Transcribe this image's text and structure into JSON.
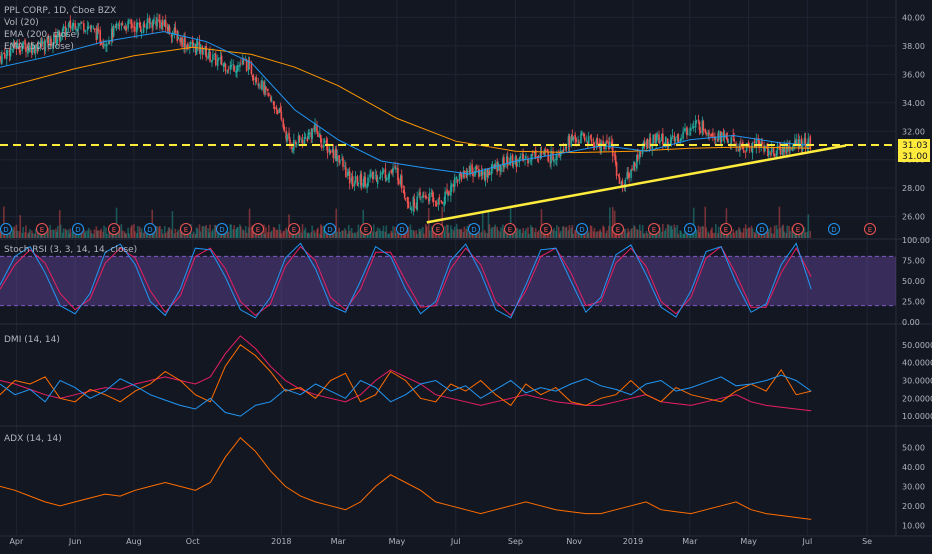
{
  "colors": {
    "background": "#131722",
    "grid": "#1f2433",
    "divider": "#2a2e39",
    "text": "#b2b5be",
    "up": "#26a69a",
    "down": "#ef5350",
    "ema50": "#2196f3",
    "ema200": "#ff9800",
    "trendline": "#ffeb3b",
    "hline": "#ffeb3b",
    "stoch_k": "#2196f3",
    "stoch_d": "#e91e63",
    "stoch_band": "#7e57c2",
    "dmi_plus": "#2196f3",
    "dmi_minus": "#ff6d00",
    "dmi_adx": "#e91e63",
    "adx": "#ff6d00",
    "price_label_bg": "#ffeb3b",
    "price_label_text": "#131722"
  },
  "header": {
    "title": "PPL CORP, 1D, Cboe BZX",
    "studies": [
      "Vol (20)",
      "EMA (200, close)",
      "EMA (50, close)"
    ]
  },
  "panes": {
    "stoch_title": "Stoch RSI (3, 3, 14, 14, close)",
    "dmi_title": "DMI (14, 14)",
    "adx_title": "ADX (14, 14)"
  },
  "price_labels": {
    "hline": "31.03",
    "last": "31.00"
  },
  "chart_data": [
    {
      "type": "line",
      "pane": "price",
      "title": "PPL CORP, 1D, Cboe BZX",
      "x_axis": {
        "ticks": [
          "Apr",
          "Jun",
          "Aug",
          "Oct",
          "2018",
          "Mar",
          "May",
          "Jul",
          "Sep",
          "Nov",
          "2019",
          "Mar",
          "May",
          "Jul",
          "Se"
        ],
        "range": [
          "2017-03-15",
          "2019-10-01"
        ]
      },
      "y_axis": {
        "ticks": [
          "26.00",
          "28.00",
          "30.00",
          "32.00",
          "34.00",
          "36.00",
          "38.00",
          "40.00"
        ],
        "range": [
          24.5,
          40.8
        ]
      },
      "series": [
        {
          "kind": "price",
          "x": [
            "2017-03-15",
            "2017-04-01",
            "2017-04-20",
            "2017-05-10",
            "2017-06-01",
            "2017-06-15",
            "2017-07-01",
            "2017-07-20",
            "2017-08-10",
            "2017-08-25",
            "2017-09-10",
            "2017-09-25",
            "2017-10-10",
            "2017-10-25",
            "2017-11-10",
            "2017-11-25",
            "2017-12-10",
            "2017-12-20",
            "2017-12-29",
            "2018-01-10",
            "2018-01-25",
            "2018-02-05",
            "2018-02-15",
            "2018-03-01",
            "2018-03-15",
            "2018-04-01",
            "2018-04-15",
            "2018-05-01",
            "2018-05-15",
            "2018-06-01",
            "2018-06-15",
            "2018-07-01",
            "2018-07-15",
            "2018-08-01",
            "2018-08-20",
            "2018-09-10",
            "2018-09-25",
            "2018-10-10",
            "2018-10-25",
            "2018-11-10",
            "2018-11-25",
            "2018-12-10",
            "2018-12-20",
            "2018-12-28",
            "2019-01-10",
            "2019-01-25",
            "2019-02-10",
            "2019-02-25",
            "2019-03-10",
            "2019-03-25",
            "2019-04-10",
            "2019-04-25",
            "2019-05-10",
            "2019-05-25",
            "2019-06-10",
            "2019-06-25",
            "2019-07-05"
          ],
          "y": [
            37.2,
            38.0,
            37.9,
            38.4,
            39.6,
            39.4,
            38.3,
            39.5,
            39.3,
            39.8,
            39.0,
            38.1,
            37.8,
            37.0,
            36.5,
            36.8,
            35.5,
            34.2,
            33.5,
            31.0,
            31.4,
            32.2,
            31.0,
            30.3,
            28.4,
            28.6,
            29.0,
            29.2,
            26.8,
            27.5,
            26.9,
            28.6,
            29.3,
            29.0,
            29.8,
            30.0,
            30.5,
            30.2,
            31.3,
            31.5,
            31.1,
            31.0,
            28.1,
            28.9,
            30.8,
            31.5,
            31.2,
            32.0,
            32.5,
            31.9,
            31.4,
            30.7,
            31.2,
            30.5,
            30.8,
            31.2,
            31.0
          ]
        },
        {
          "kind": "ema",
          "name": "EMA (50, close)",
          "x": [
            "2017-03-15",
            "2017-05-01",
            "2017-07-01",
            "2017-09-01",
            "2017-10-15",
            "2017-12-01",
            "2018-01-15",
            "2018-03-01",
            "2018-04-15",
            "2018-06-01",
            "2018-07-15",
            "2018-09-01",
            "2018-10-15",
            "2018-12-01",
            "2019-01-15",
            "2019-03-01",
            "2019-04-15",
            "2019-06-01",
            "2019-07-05"
          ],
          "y": [
            36.5,
            37.2,
            38.3,
            39.0,
            38.3,
            36.8,
            33.5,
            31.4,
            29.9,
            29.4,
            29.0,
            29.9,
            30.4,
            31.0,
            30.6,
            31.4,
            31.7,
            31.2,
            31.0
          ]
        },
        {
          "kind": "ema",
          "name": "EMA (200, close)",
          "x": [
            "2017-03-15",
            "2017-06-01",
            "2017-08-01",
            "2017-10-01",
            "2017-12-01",
            "2018-01-15",
            "2018-03-01",
            "2018-05-01",
            "2018-07-01",
            "2018-09-01",
            "2018-11-01",
            "2019-01-01",
            "2019-03-01",
            "2019-05-01",
            "2019-07-05"
          ],
          "y": [
            35.0,
            36.4,
            37.3,
            37.9,
            37.4,
            36.5,
            35.2,
            32.9,
            31.3,
            30.6,
            30.5,
            30.6,
            30.8,
            30.9,
            30.8
          ]
        },
        {
          "kind": "hline",
          "y": [
            31.03
          ]
        },
        {
          "kind": "trendline",
          "x": [
            "2018-06-01",
            "2019-08-10"
          ],
          "y": [
            25.6,
            31.0
          ]
        }
      ]
    },
    {
      "type": "bar",
      "pane": "volume",
      "title": "Vol (20)",
      "events": [
        "D",
        "E",
        "D",
        "E",
        "D",
        "E",
        "D",
        "E",
        "E",
        "D",
        "E",
        "D",
        "E",
        "D",
        "E",
        "E",
        "D",
        "E",
        "E",
        "D",
        "E",
        "D",
        "E",
        "D",
        "E"
      ]
    },
    {
      "type": "line",
      "pane": "stoch_rsi",
      "title": "Stoch RSI (3, 3, 14, 14, close)",
      "y_axis": {
        "ticks": [
          "0.00",
          "25.00",
          "50.00",
          "75.00",
          "100.00"
        ],
        "range": [
          0,
          100
        ]
      },
      "bands": [
        20,
        80
      ],
      "series": [
        {
          "name": "K",
          "y": [
            45,
            80,
            92,
            60,
            20,
            10,
            35,
            85,
            95,
            70,
            25,
            8,
            40,
            90,
            88,
            55,
            15,
            5,
            30,
            78,
            96,
            65,
            20,
            12,
            50,
            92,
            80,
            40,
            10,
            25,
            75,
            95,
            60,
            15,
            5,
            45,
            88,
            90,
            50,
            12,
            30,
            82,
            94,
            58,
            18,
            6,
            38,
            86,
            92,
            48,
            12,
            22,
            70,
            96,
            40
          ]
        },
        {
          "name": "D",
          "y": [
            40,
            70,
            88,
            72,
            35,
            15,
            28,
            72,
            90,
            78,
            38,
            12,
            32,
            80,
            90,
            65,
            25,
            8,
            22,
            68,
            92,
            75,
            30,
            15,
            40,
            85,
            85,
            50,
            18,
            20,
            65,
            90,
            70,
            25,
            8,
            38,
            80,
            90,
            60,
            20,
            25,
            72,
            90,
            68,
            25,
            10,
            30,
            78,
            92,
            58,
            18,
            18,
            60,
            90,
            55
          ]
        }
      ]
    },
    {
      "type": "line",
      "pane": "dmi",
      "title": "DMI (14, 14)",
      "y_axis": {
        "ticks": [
          "10.0000",
          "20.0000",
          "30.0000",
          "40.0000",
          "50.0000"
        ],
        "range": [
          5,
          60
        ]
      },
      "series": [
        {
          "name": "+DI",
          "y": [
            28,
            22,
            25,
            18,
            30,
            26,
            20,
            24,
            31,
            27,
            22,
            19,
            16,
            14,
            20,
            12,
            10,
            16,
            18,
            25,
            22,
            28,
            24,
            20,
            30,
            26,
            18,
            22,
            28,
            30,
            24,
            27,
            20,
            25,
            30,
            23,
            26,
            24,
            28,
            31,
            27,
            25,
            22,
            28,
            30,
            24,
            26,
            29,
            32,
            27,
            28,
            30,
            33,
            30,
            24
          ]
        },
        {
          "name": "-DI",
          "y": [
            22,
            30,
            28,
            32,
            20,
            18,
            25,
            22,
            18,
            24,
            28,
            35,
            30,
            22,
            18,
            38,
            50,
            44,
            35,
            24,
            26,
            20,
            30,
            34,
            18,
            22,
            35,
            30,
            20,
            18,
            28,
            24,
            30,
            22,
            16,
            28,
            22,
            26,
            18,
            16,
            20,
            22,
            30,
            22,
            18,
            26,
            22,
            20,
            18,
            24,
            28,
            24,
            36,
            22,
            24
          ]
        },
        {
          "name": "ADX",
          "y": [
            30,
            28,
            25,
            22,
            20,
            22,
            24,
            26,
            25,
            28,
            30,
            32,
            30,
            28,
            32,
            45,
            55,
            48,
            38,
            30,
            25,
            22,
            20,
            18,
            22,
            30,
            36,
            32,
            28,
            22,
            20,
            18,
            16,
            18,
            20,
            22,
            20,
            18,
            17,
            16,
            16,
            18,
            20,
            22,
            18,
            17,
            16,
            18,
            20,
            22,
            18,
            16,
            15,
            14,
            13
          ]
        }
      ]
    },
    {
      "type": "line",
      "pane": "adx",
      "title": "ADX (14, 14)",
      "y_axis": {
        "ticks": [
          "10.00",
          "20.00",
          "30.00",
          "40.00",
          "50.00"
        ],
        "range": [
          5,
          60
        ]
      },
      "series": [
        {
          "name": "ADX",
          "y": [
            30,
            28,
            25,
            22,
            20,
            22,
            24,
            26,
            25,
            28,
            30,
            32,
            30,
            28,
            32,
            45,
            55,
            48,
            38,
            30,
            25,
            22,
            20,
            18,
            22,
            30,
            36,
            32,
            28,
            22,
            20,
            18,
            16,
            18,
            20,
            22,
            20,
            18,
            17,
            16,
            16,
            18,
            20,
            22,
            18,
            17,
            16,
            18,
            20,
            22,
            18,
            16,
            15,
            14,
            13
          ]
        }
      ]
    }
  ]
}
